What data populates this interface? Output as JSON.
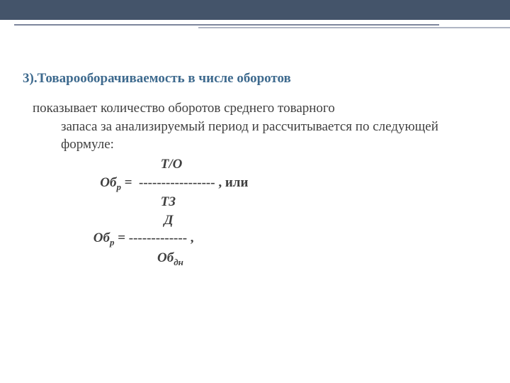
{
  "colors": {
    "topbar": "#44546a",
    "heading": "#3e6a8e",
    "body": "#404040",
    "line1": "#7d869c",
    "line2": "#b0b6c4"
  },
  "heading": "3).Товарооборачиваемость в числе оборотов",
  "paragraph_first": "показывает количество оборотов среднего товарного",
  "paragraph_rest": "запаса за анализируемый период и рассчитывается по следующей формуле:",
  "formula": {
    "l1": "                                         Т/О",
    "l2a": "                       Об",
    "l2b": " =  ----------------- , или",
    "l3": "                                         ТЗ",
    "l4": "                                          Д",
    "l5a": "                     Об",
    "l5b": " = ------------- ,",
    "l6a": "                                        Об",
    "sub_r": "р",
    "sub_dn": "дн"
  }
}
